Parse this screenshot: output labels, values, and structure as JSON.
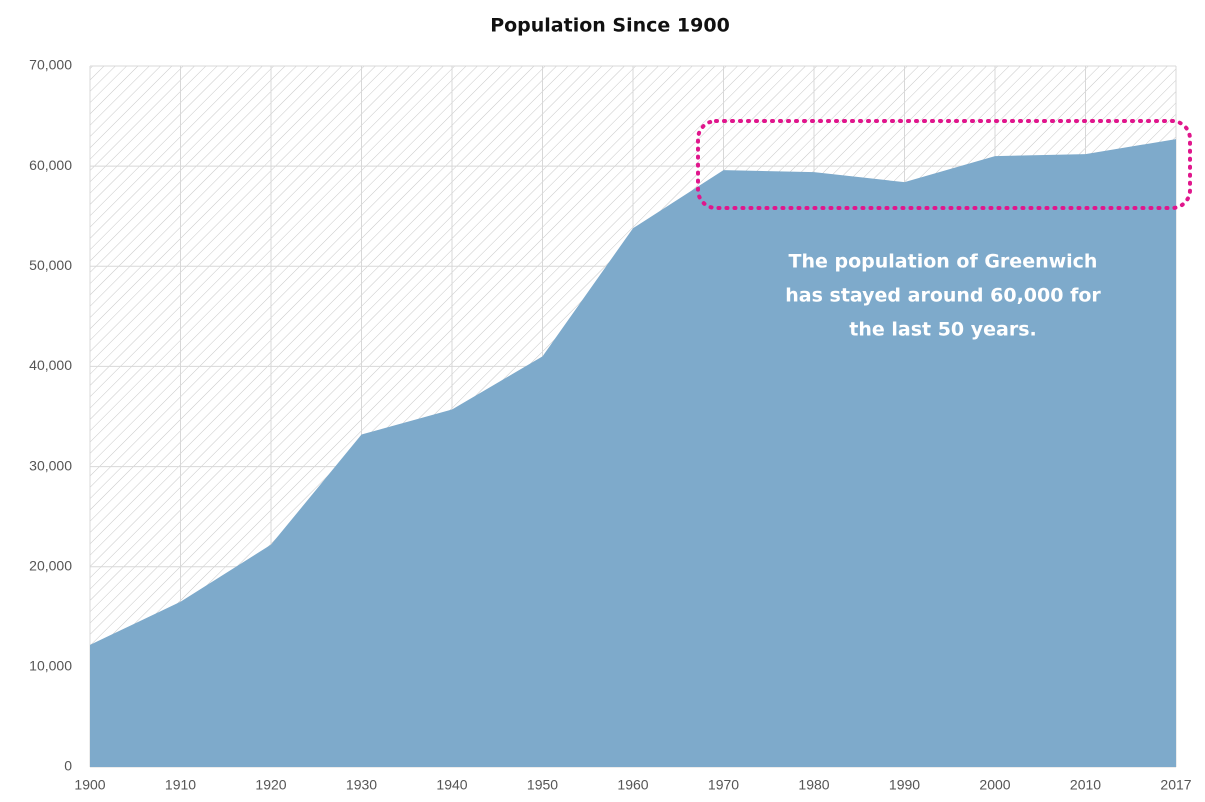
{
  "chart_data": {
    "type": "area",
    "title": "Population Since 1900",
    "categories": [
      "1900",
      "1910",
      "1920",
      "1930",
      "1940",
      "1950",
      "1960",
      "1970",
      "1980",
      "1990",
      "2000",
      "2010",
      "2017"
    ],
    "values": [
      12200,
      16500,
      22200,
      33200,
      35700,
      41000,
      53800,
      59600,
      59400,
      58400,
      61000,
      61200,
      62700
    ],
    "color": "#7eaacb",
    "ylim": [
      0,
      70000
    ],
    "yticks": [
      0,
      {
        "value": 10000,
        "label": "10,000"
      },
      {
        "value": 20000,
        "label": "20,000"
      },
      {
        "value": 30000,
        "label": "30,000"
      },
      {
        "value": 40000,
        "label": "40,000"
      },
      {
        "value": 50000,
        "label": "50,000"
      },
      {
        "value": 60000,
        "label": "60,000"
      },
      {
        "value": 70000,
        "label": "70,000"
      }
    ],
    "grid": true,
    "annotation": [
      "The population of Greenwich",
      "has stayed around 60,000 for",
      "the last 50 years."
    ]
  }
}
